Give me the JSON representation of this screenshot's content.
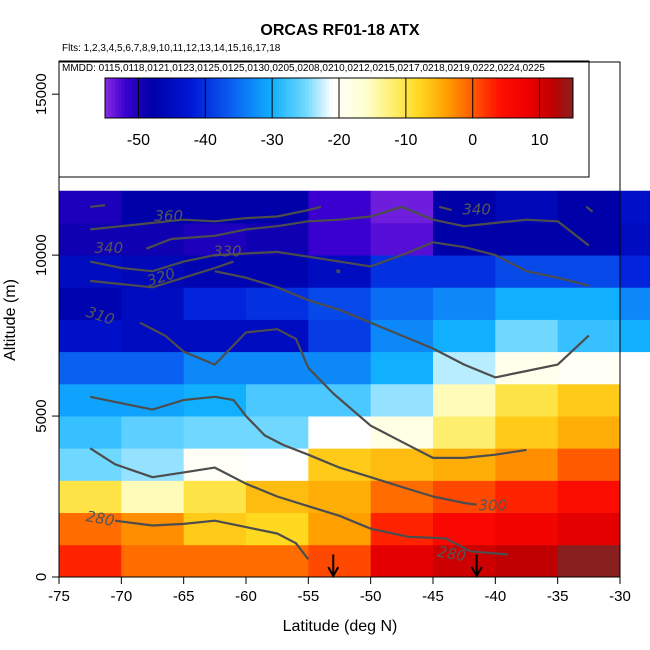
{
  "chart_data": {
    "type": "heatmap",
    "title": "ORCAS RF01-18 ATX",
    "flights_label": "Flts: 1,2,3,4,5,6,7,8,9,10,11,12,13,14,15,16,17,18",
    "dates_label": "MMDD: 0115,0118,0121,0123,0125,0125,0130,0205,0208,0210,0212,0215,0217,0218,0219,0222,0224,0225",
    "xlabel": "Latitude (deg N)",
    "ylabel": "Altitude (m)",
    "xlim": [
      -75,
      -30
    ],
    "ylim": [
      0,
      16000
    ],
    "xticks": [
      -75,
      -70,
      -65,
      -60,
      -55,
      -50,
      -45,
      -40,
      -35,
      -30
    ],
    "xtick_labels": [
      "-75",
      "-70",
      "-65",
      "-60",
      "-55",
      "-50",
      "-45",
      "-40",
      "-35",
      "-30"
    ],
    "yticks": [
      0,
      5000,
      10000,
      15000
    ],
    "ytick_labels": [
      "0",
      "5000",
      "10000",
      "15000"
    ],
    "colorbar": {
      "min": -55,
      "max": 15,
      "ticks": [
        -50,
        -40,
        -30,
        -20,
        -10,
        0,
        10
      ],
      "tick_labels": [
        "-50",
        "-40",
        "-30",
        "-20",
        "-10",
        "0",
        "10"
      ],
      "stops": [
        {
          "v": -55,
          "c": "#8a2be2"
        },
        {
          "v": -52,
          "c": "#3a00d0"
        },
        {
          "v": -48,
          "c": "#0000a8"
        },
        {
          "v": -42,
          "c": "#0018d8"
        },
        {
          "v": -36,
          "c": "#0a60f0"
        },
        {
          "v": -30,
          "c": "#10b0ff"
        },
        {
          "v": -25,
          "c": "#70d8ff"
        },
        {
          "v": -21,
          "c": "#ffffff"
        },
        {
          "v": -16,
          "c": "#ffffd0"
        },
        {
          "v": -12,
          "c": "#ffef70"
        },
        {
          "v": -8,
          "c": "#ffd820"
        },
        {
          "v": -4,
          "c": "#ffa000"
        },
        {
          "v": 0,
          "c": "#ff5a00"
        },
        {
          "v": 4,
          "c": "#ff1000"
        },
        {
          "v": 8,
          "c": "#f00000"
        },
        {
          "v": 12,
          "c": "#c00000"
        },
        {
          "v": 15,
          "c": "#882020"
        }
      ]
    },
    "grid": {
      "lat_edges": [
        -75,
        -70,
        -65,
        -60,
        -55,
        -50,
        -45,
        -40,
        -35,
        -30
      ],
      "alt_edges": [
        0,
        1000,
        2000,
        3000,
        4000,
        5000,
        6000,
        7000,
        8000,
        9000,
        10000,
        11000,
        12000
      ],
      "values_bottom_to_top": [
        [
          3,
          -1,
          -1,
          -1,
          1,
          9,
          11,
          12,
          15,
          null
        ],
        [
          -1,
          -3,
          -7,
          -8,
          -4,
          3,
          6,
          7,
          9,
          null
        ],
        [
          -10,
          -15,
          -10,
          -6,
          -5,
          -1,
          1,
          3,
          5,
          null
        ],
        [
          -25,
          -24,
          -20,
          -21,
          -7,
          -6,
          -5,
          -3,
          0,
          null
        ],
        [
          -28,
          -26,
          -25,
          -25,
          -21,
          -18,
          -12,
          -7,
          -5,
          null
        ],
        [
          -31,
          -31,
          -30,
          -27,
          -27,
          -24,
          -15,
          -10,
          -7,
          null
        ],
        [
          -36,
          -36,
          -33,
          -33,
          -33,
          -30,
          -23,
          -19,
          -20,
          null
        ],
        [
          -44,
          -45,
          -45,
          -45,
          -39,
          -33,
          -30,
          -25,
          -28,
          -30
        ],
        [
          -47,
          -45,
          -41,
          -40,
          -38,
          -35,
          -33,
          -30,
          -30,
          -33
        ],
        [
          -45,
          -46,
          -47,
          -47,
          -45,
          -40,
          -40,
          -38,
          -38,
          -41
        ],
        [
          -49,
          -49,
          -50,
          -49,
          -52,
          -53,
          -48,
          -48,
          -48,
          -45
        ],
        [
          -50,
          -48,
          -48,
          -48,
          -52,
          -54,
          -48,
          -46,
          -48,
          -44
        ]
      ]
    },
    "contours": [
      {
        "label": "280",
        "label_lat": -71.7,
        "label_alt": 1800,
        "label_rot": 10,
        "points": [
          [
            -72.5,
            4000
          ],
          [
            -70.5,
            3500
          ],
          [
            -67.5,
            3100
          ],
          [
            -65,
            3250
          ],
          [
            -62.5,
            3400
          ],
          [
            -60,
            2900
          ],
          [
            -57.5,
            2500
          ],
          [
            -55,
            2200
          ],
          [
            -52.5,
            1900
          ],
          [
            -50,
            1500
          ],
          [
            -47,
            1250
          ],
          [
            -44,
            1200
          ],
          [
            -42,
            800
          ],
          [
            -39,
            700
          ]
        ]
      },
      {
        "label": "280",
        "label_lat": -43.5,
        "label_alt": 700,
        "label_rot": 10,
        "points": [
          [
            -70.5,
            1750
          ],
          [
            -67.5,
            1600
          ],
          [
            -65,
            1650
          ],
          [
            -62.5,
            1750
          ],
          [
            -60,
            1550
          ],
          [
            -57.5,
            1350
          ],
          [
            -56,
            1050
          ],
          [
            -55,
            550
          ]
        ]
      },
      {
        "label": "300",
        "label_lat": -40.2,
        "label_alt": 2200,
        "label_rot": 0,
        "points": [
          [
            -72.5,
            5600
          ],
          [
            -70,
            5400
          ],
          [
            -67.5,
            5200
          ],
          [
            -65,
            5500
          ],
          [
            -62.5,
            5600
          ],
          [
            -61,
            5500
          ],
          [
            -60,
            5000
          ],
          [
            -58.5,
            4400
          ],
          [
            -57,
            4100
          ],
          [
            -55,
            3800
          ],
          [
            -52.5,
            3400
          ],
          [
            -50,
            3100
          ],
          [
            -47.5,
            2800
          ],
          [
            -45,
            2500
          ],
          [
            -42.5,
            2300
          ],
          [
            -41.5,
            2250
          ]
        ]
      },
      {
        "label": "",
        "label_lat": 0,
        "label_alt": 0,
        "label_rot": 0,
        "points": [
          [
            -55,
            6500
          ],
          [
            -53,
            5700
          ],
          [
            -50,
            4700
          ],
          [
            -47.5,
            4200
          ],
          [
            -45,
            3700
          ],
          [
            -42.5,
            3700
          ],
          [
            -40,
            3800
          ],
          [
            -37.5,
            3950
          ]
        ]
      },
      {
        "label": "310",
        "label_lat": -71.7,
        "label_alt": 8100,
        "label_rot": 18,
        "points": [
          [
            -68.5,
            7900
          ],
          [
            -66.5,
            7500
          ],
          [
            -65,
            7000
          ],
          [
            -62.5,
            6600
          ],
          [
            -60,
            7600
          ],
          [
            -57.5,
            7700
          ],
          [
            -56,
            7400
          ],
          [
            -55,
            6500
          ]
        ]
      },
      {
        "label": "",
        "label_lat": 0,
        "label_alt": 0,
        "label_rot": 0,
        "points": [
          [
            -62.5,
            9500
          ],
          [
            -60,
            9300
          ],
          [
            -57.5,
            9000
          ],
          [
            -55,
            8600
          ],
          [
            -52.5,
            8300
          ],
          [
            -50,
            7900
          ],
          [
            -47.5,
            7500
          ],
          [
            -45,
            7100
          ],
          [
            -42.5,
            6600
          ],
          [
            -40,
            6200
          ],
          [
            -37.5,
            6400
          ],
          [
            -35,
            6600
          ],
          [
            -32.5,
            7500
          ]
        ]
      },
      {
        "label": "320",
        "label_lat": -66.8,
        "label_alt": 9300,
        "label_rot": -18,
        "points": [
          [
            -72.5,
            9800
          ],
          [
            -70,
            9600
          ],
          [
            -67.5,
            9500
          ],
          [
            -65,
            9800
          ],
          [
            -62.5,
            10000
          ],
          [
            -60,
            10050
          ],
          [
            -57.5,
            10100
          ],
          [
            -55,
            9950
          ],
          [
            -52.5,
            9800
          ],
          [
            -50,
            9650
          ],
          [
            -47.5,
            10000
          ],
          [
            -45,
            10400
          ],
          [
            -42.5,
            10250
          ],
          [
            -40,
            10000
          ],
          [
            -37.5,
            9500
          ],
          [
            -35,
            9300
          ],
          [
            -32.5,
            9050
          ]
        ]
      },
      {
        "label": "330",
        "label_lat": -61.5,
        "label_alt": 10100,
        "label_rot": 0,
        "points": [
          [
            -72.5,
            9200
          ],
          [
            -70,
            9100
          ],
          [
            -67.5,
            9000
          ],
          [
            -65,
            9300
          ],
          [
            -62.5,
            9600
          ],
          [
            -61,
            9800
          ]
        ]
      },
      {
        "label": "340",
        "label_lat": -71,
        "label_alt": 10200,
        "label_rot": 0,
        "points": [
          [
            -68,
            10200
          ],
          [
            -66,
            10500
          ],
          [
            -62.5,
            10600
          ],
          [
            -60,
            10800
          ],
          [
            -57.5,
            10900
          ],
          [
            -55,
            11050
          ],
          [
            -52.5,
            11100
          ],
          [
            -50,
            11200
          ],
          [
            -47.5,
            11500
          ],
          [
            -45,
            11100
          ],
          [
            -42.5,
            10900
          ],
          [
            -40,
            11000
          ],
          [
            -37.5,
            11100
          ],
          [
            -35,
            11050
          ],
          [
            -32.5,
            10300
          ]
        ]
      },
      {
        "label": "340",
        "label_lat": -41.5,
        "label_alt": 11400,
        "label_rot": 0,
        "points": [
          [
            -44.5,
            11500
          ],
          [
            -43.5,
            11400
          ]
        ]
      },
      {
        "label": "360",
        "label_lat": -66.2,
        "label_alt": 11200,
        "label_rot": 0,
        "points": [
          [
            -72.5,
            10800
          ],
          [
            -70,
            10900
          ],
          [
            -67.5,
            11000
          ],
          [
            -65,
            11100
          ],
          [
            -62.5,
            11050
          ],
          [
            -60,
            11150
          ],
          [
            -57.5,
            11200
          ],
          [
            -55,
            11400
          ],
          [
            -54,
            11500
          ]
        ]
      }
    ],
    "contour_fragments": [
      {
        "points": [
          [
            -72.5,
            11500
          ],
          [
            -71.3,
            11550
          ]
        ]
      },
      {
        "points": [
          [
            -32.7,
            11500
          ],
          [
            -32.2,
            11350
          ]
        ]
      }
    ],
    "contour_dot": {
      "lat": -52.6,
      "alt": 9500
    },
    "arrows": [
      {
        "lat": -53,
        "alt_top": 700,
        "alt_bottom": 0
      },
      {
        "lat": -41.5,
        "alt_top": 700,
        "alt_bottom": 0
      }
    ]
  }
}
